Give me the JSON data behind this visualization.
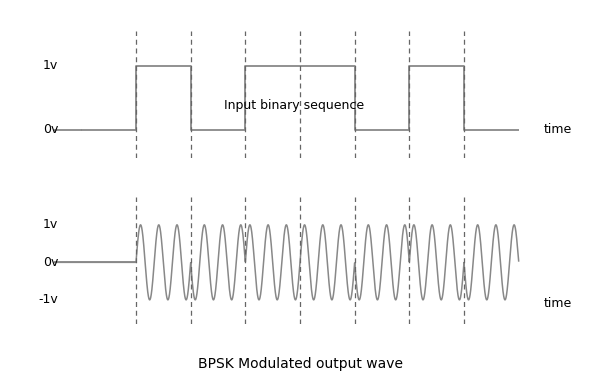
{
  "title": "BPSK Modulated output wave",
  "top_label": "Input binary sequence",
  "top_time_label": "time",
  "bottom_time_label": "time",
  "top_ylabel_1v": "1v",
  "top_ylabel_0v": "0v",
  "bot_ylabel_1v": "1v",
  "bot_ylabel_0v": "0v",
  "bot_ylabel_n1v": "-1v",
  "line_color": "#888888",
  "dashed_color": "#666666",
  "background_color": "#ffffff",
  "bit_sequence": [
    0,
    1,
    0,
    1,
    1,
    0,
    1,
    0
  ],
  "num_bits": 8,
  "cycles_per_bit": 3,
  "dashed_positions": [
    1,
    2,
    3,
    4,
    5,
    6,
    7
  ],
  "fig_width": 6.0,
  "fig_height": 3.86,
  "dpi": 100
}
